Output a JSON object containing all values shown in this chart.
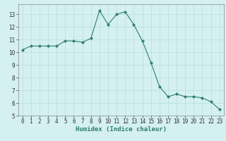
{
  "x": [
    0,
    1,
    2,
    3,
    4,
    5,
    6,
    7,
    8,
    9,
    10,
    11,
    12,
    13,
    14,
    15,
    16,
    17,
    18,
    19,
    20,
    21,
    22,
    23
  ],
  "y": [
    10.2,
    10.5,
    10.5,
    10.5,
    10.5,
    10.9,
    10.9,
    10.8,
    11.1,
    13.3,
    12.2,
    13.0,
    13.2,
    12.2,
    10.9,
    9.2,
    7.3,
    6.5,
    6.7,
    6.5,
    6.5,
    6.4,
    6.1,
    5.5
  ],
  "xlabel": "Humidex (Indice chaleur)",
  "xlim": [
    -0.5,
    23.5
  ],
  "ylim": [
    5,
    13.8
  ],
  "yticks": [
    5,
    6,
    7,
    8,
    9,
    10,
    11,
    12,
    13
  ],
  "xticks": [
    0,
    1,
    2,
    3,
    4,
    5,
    6,
    7,
    8,
    9,
    10,
    11,
    12,
    13,
    14,
    15,
    16,
    17,
    18,
    19,
    20,
    21,
    22,
    23
  ],
  "line_color": "#2e7d6e",
  "marker_color": "#2e7d6e",
  "bg_color": "#d4f0f0",
  "grid_color": "#b8dede",
  "tick_fontsize": 5.5,
  "label_fontsize": 6.5
}
